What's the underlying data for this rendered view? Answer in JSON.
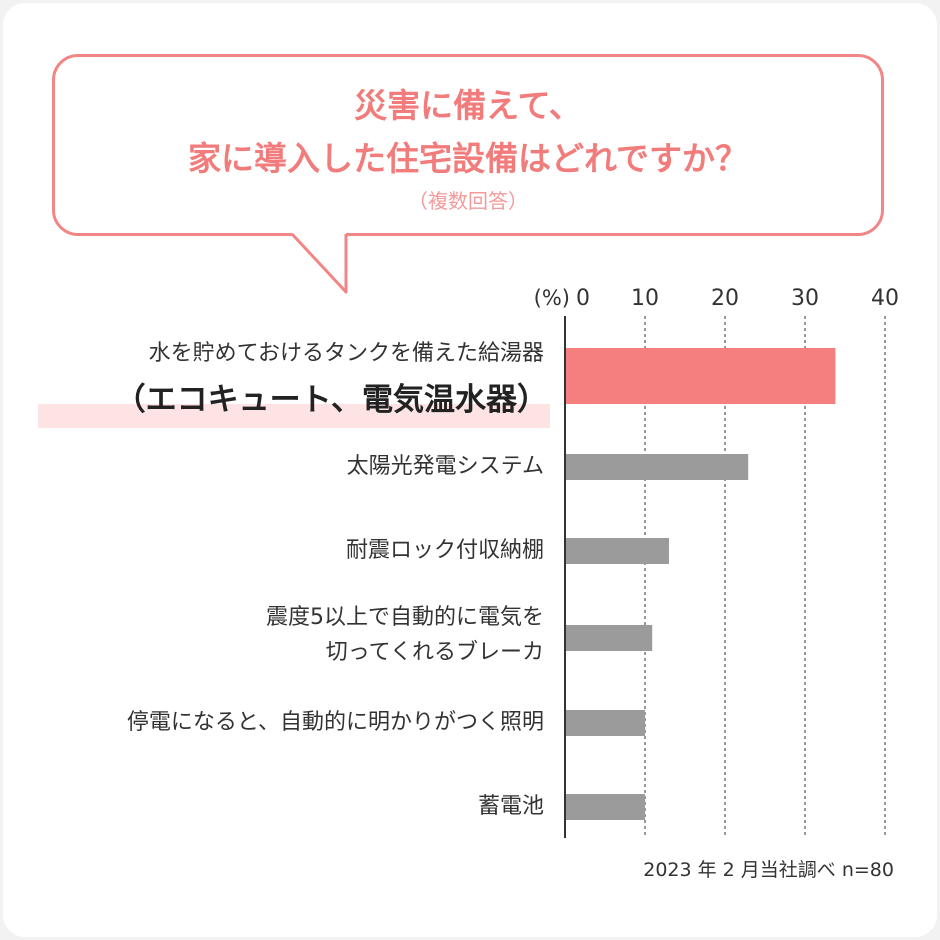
{
  "header": {
    "title_line1": "災害に備えて、",
    "title_line2": "家に導入した住宅設備はどれですか？",
    "subtitle": "（複数回答）"
  },
  "chart_data": {
    "type": "bar",
    "orientation": "horizontal",
    "categories": [
      "水を貯めておけるタンクを備えた給湯器（エコキュート、電気温水器）",
      "太陽光発電システム",
      "耐震ロック付収納棚",
      "震度5以上で自動的に電気を切ってくれるブレーカ",
      "停電になると、自動的に明かりがつく照明",
      "蓄電池"
    ],
    "category_lines": [
      [
        "水を貯めておけるタンクを備えた給湯器",
        "（エコキュート、電気温水器）"
      ],
      [
        "太陽光発電システム"
      ],
      [
        "耐震ロック付収納棚"
      ],
      [
        "震度5以上で自動的に電気を",
        "切ってくれるブレーカ"
      ],
      [
        "停電になると、自動的に明かりがつく照明"
      ],
      [
        "蓄電池"
      ]
    ],
    "values": [
      33.8,
      22.9,
      13.0,
      10.9,
      10.0,
      10.0
    ],
    "highlight_index": 0,
    "xlim": [
      0,
      40
    ],
    "x_ticks": [
      "0",
      "10",
      "20",
      "30",
      "40"
    ],
    "unit_label": "(%)",
    "grid": "dashed vertical at 10, 20, 30, 40",
    "colors": {
      "highlight_bar": "#f57f7f",
      "bar": "#9b9b9b",
      "accent": "#f28585"
    }
  },
  "footnote": "2023 年 2 月当社調べ n=80"
}
